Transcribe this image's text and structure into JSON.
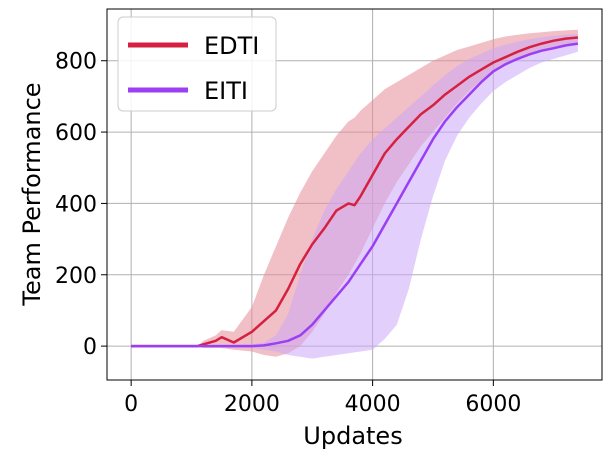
{
  "chart_data": {
    "type": "line",
    "title": "",
    "xlabel": "Updates",
    "ylabel": "Team Performance",
    "xlim": [
      -400,
      7800
    ],
    "ylim": [
      -95,
      945
    ],
    "xticks": [
      0,
      2000,
      4000,
      6000
    ],
    "yticks": [
      0,
      200,
      400,
      600,
      800
    ],
    "xtick_labels": [
      "0",
      "2000",
      "4000",
      "6000"
    ],
    "ytick_labels": [
      "0",
      "200",
      "400",
      "600",
      "800"
    ],
    "grid": true,
    "legend_position": "top-left",
    "series": [
      {
        "name": "EDTI",
        "color": "#d62040",
        "band_color": "#e58a98",
        "x": [
          0,
          1100,
          1200,
          1400,
          1500,
          1700,
          2000,
          2200,
          2400,
          2600,
          2800,
          3000,
          3200,
          3400,
          3600,
          3700,
          3800,
          4000,
          4200,
          4400,
          4600,
          4800,
          5000,
          5200,
          5400,
          5600,
          5800,
          6000,
          6200,
          6400,
          6600,
          6800,
          7000,
          7200,
          7400
        ],
        "y": [
          0,
          0,
          5,
          15,
          25,
          10,
          40,
          70,
          100,
          160,
          230,
          285,
          330,
          380,
          400,
          395,
          420,
          480,
          540,
          580,
          615,
          650,
          675,
          705,
          730,
          755,
          775,
          795,
          810,
          825,
          838,
          848,
          856,
          862,
          865
        ],
        "lower": [
          0,
          0,
          -5,
          -5,
          -5,
          -10,
          -15,
          -25,
          -30,
          -20,
          0,
          40,
          90,
          150,
          200,
          230,
          260,
          330,
          400,
          460,
          510,
          560,
          600,
          640,
          680,
          715,
          745,
          770,
          790,
          805,
          818,
          830,
          838,
          845,
          850
        ],
        "upper": [
          0,
          0,
          15,
          30,
          45,
          40,
          110,
          200,
          280,
          360,
          430,
          490,
          540,
          590,
          630,
          640,
          660,
          690,
          720,
          740,
          760,
          780,
          800,
          815,
          830,
          840,
          850,
          860,
          868,
          873,
          877,
          880,
          883,
          885,
          887
        ]
      },
      {
        "name": "EITI",
        "color": "#9b3ff5",
        "band_color": "#cca8f7",
        "x": [
          0,
          2000,
          2200,
          2400,
          2600,
          2800,
          3000,
          3200,
          3400,
          3600,
          3800,
          4000,
          4200,
          4400,
          4600,
          4800,
          5000,
          5200,
          5400,
          5600,
          5800,
          6000,
          6200,
          6400,
          6600,
          6800,
          7000,
          7200,
          7400
        ],
        "y": [
          0,
          0,
          2,
          8,
          15,
          30,
          60,
          100,
          140,
          180,
          230,
          280,
          340,
          400,
          460,
          520,
          580,
          630,
          670,
          705,
          740,
          770,
          790,
          805,
          818,
          828,
          835,
          843,
          848
        ],
        "lower": [
          0,
          -5,
          -10,
          -15,
          -25,
          -30,
          -35,
          -30,
          -25,
          -20,
          -15,
          -10,
          20,
          60,
          160,
          300,
          420,
          520,
          590,
          640,
          680,
          715,
          740,
          760,
          780,
          795,
          805,
          815,
          825
        ],
        "upper": [
          0,
          5,
          10,
          30,
          90,
          200,
          300,
          380,
          440,
          490,
          540,
          580,
          610,
          640,
          670,
          700,
          730,
          760,
          785,
          805,
          820,
          835,
          845,
          853,
          860,
          866,
          870,
          873,
          875
        ]
      }
    ]
  }
}
